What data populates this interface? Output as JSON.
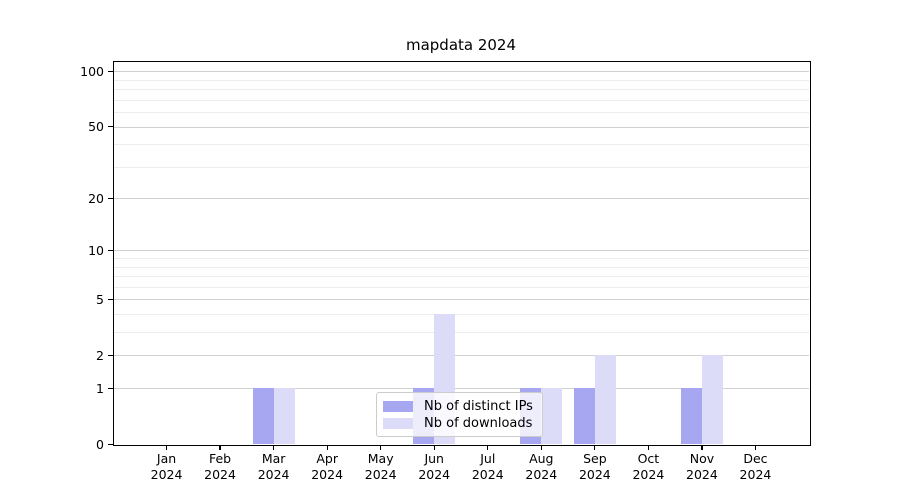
{
  "chart_data": {
    "type": "bar",
    "title": "mapdata 2024",
    "categories": [
      "Jan",
      "Feb",
      "Mar",
      "Apr",
      "May",
      "Jun",
      "Jul",
      "Aug",
      "Sep",
      "Oct",
      "Nov",
      "Dec"
    ],
    "x_year": "2024",
    "series": [
      {
        "name": "Nb of distinct IPs",
        "color": "#a7a7f1",
        "values": [
          0,
          0,
          1,
          0,
          0,
          1,
          0,
          1,
          1,
          0,
          1,
          0
        ]
      },
      {
        "name": "Nb of downloads",
        "color": "#dcdcf9",
        "values": [
          0,
          0,
          1,
          0,
          0,
          4,
          0,
          1,
          2,
          0,
          2,
          0
        ]
      }
    ],
    "yscale": "log1p",
    "ylim": [
      0,
      114
    ],
    "ytick_values": [
      0,
      1,
      2,
      5,
      10,
      20,
      50,
      100
    ],
    "yminor_values": [
      3,
      4,
      6,
      7,
      8,
      9,
      30,
      40,
      60,
      70,
      80,
      90
    ],
    "grid": true,
    "legend_position": "lower center"
  }
}
